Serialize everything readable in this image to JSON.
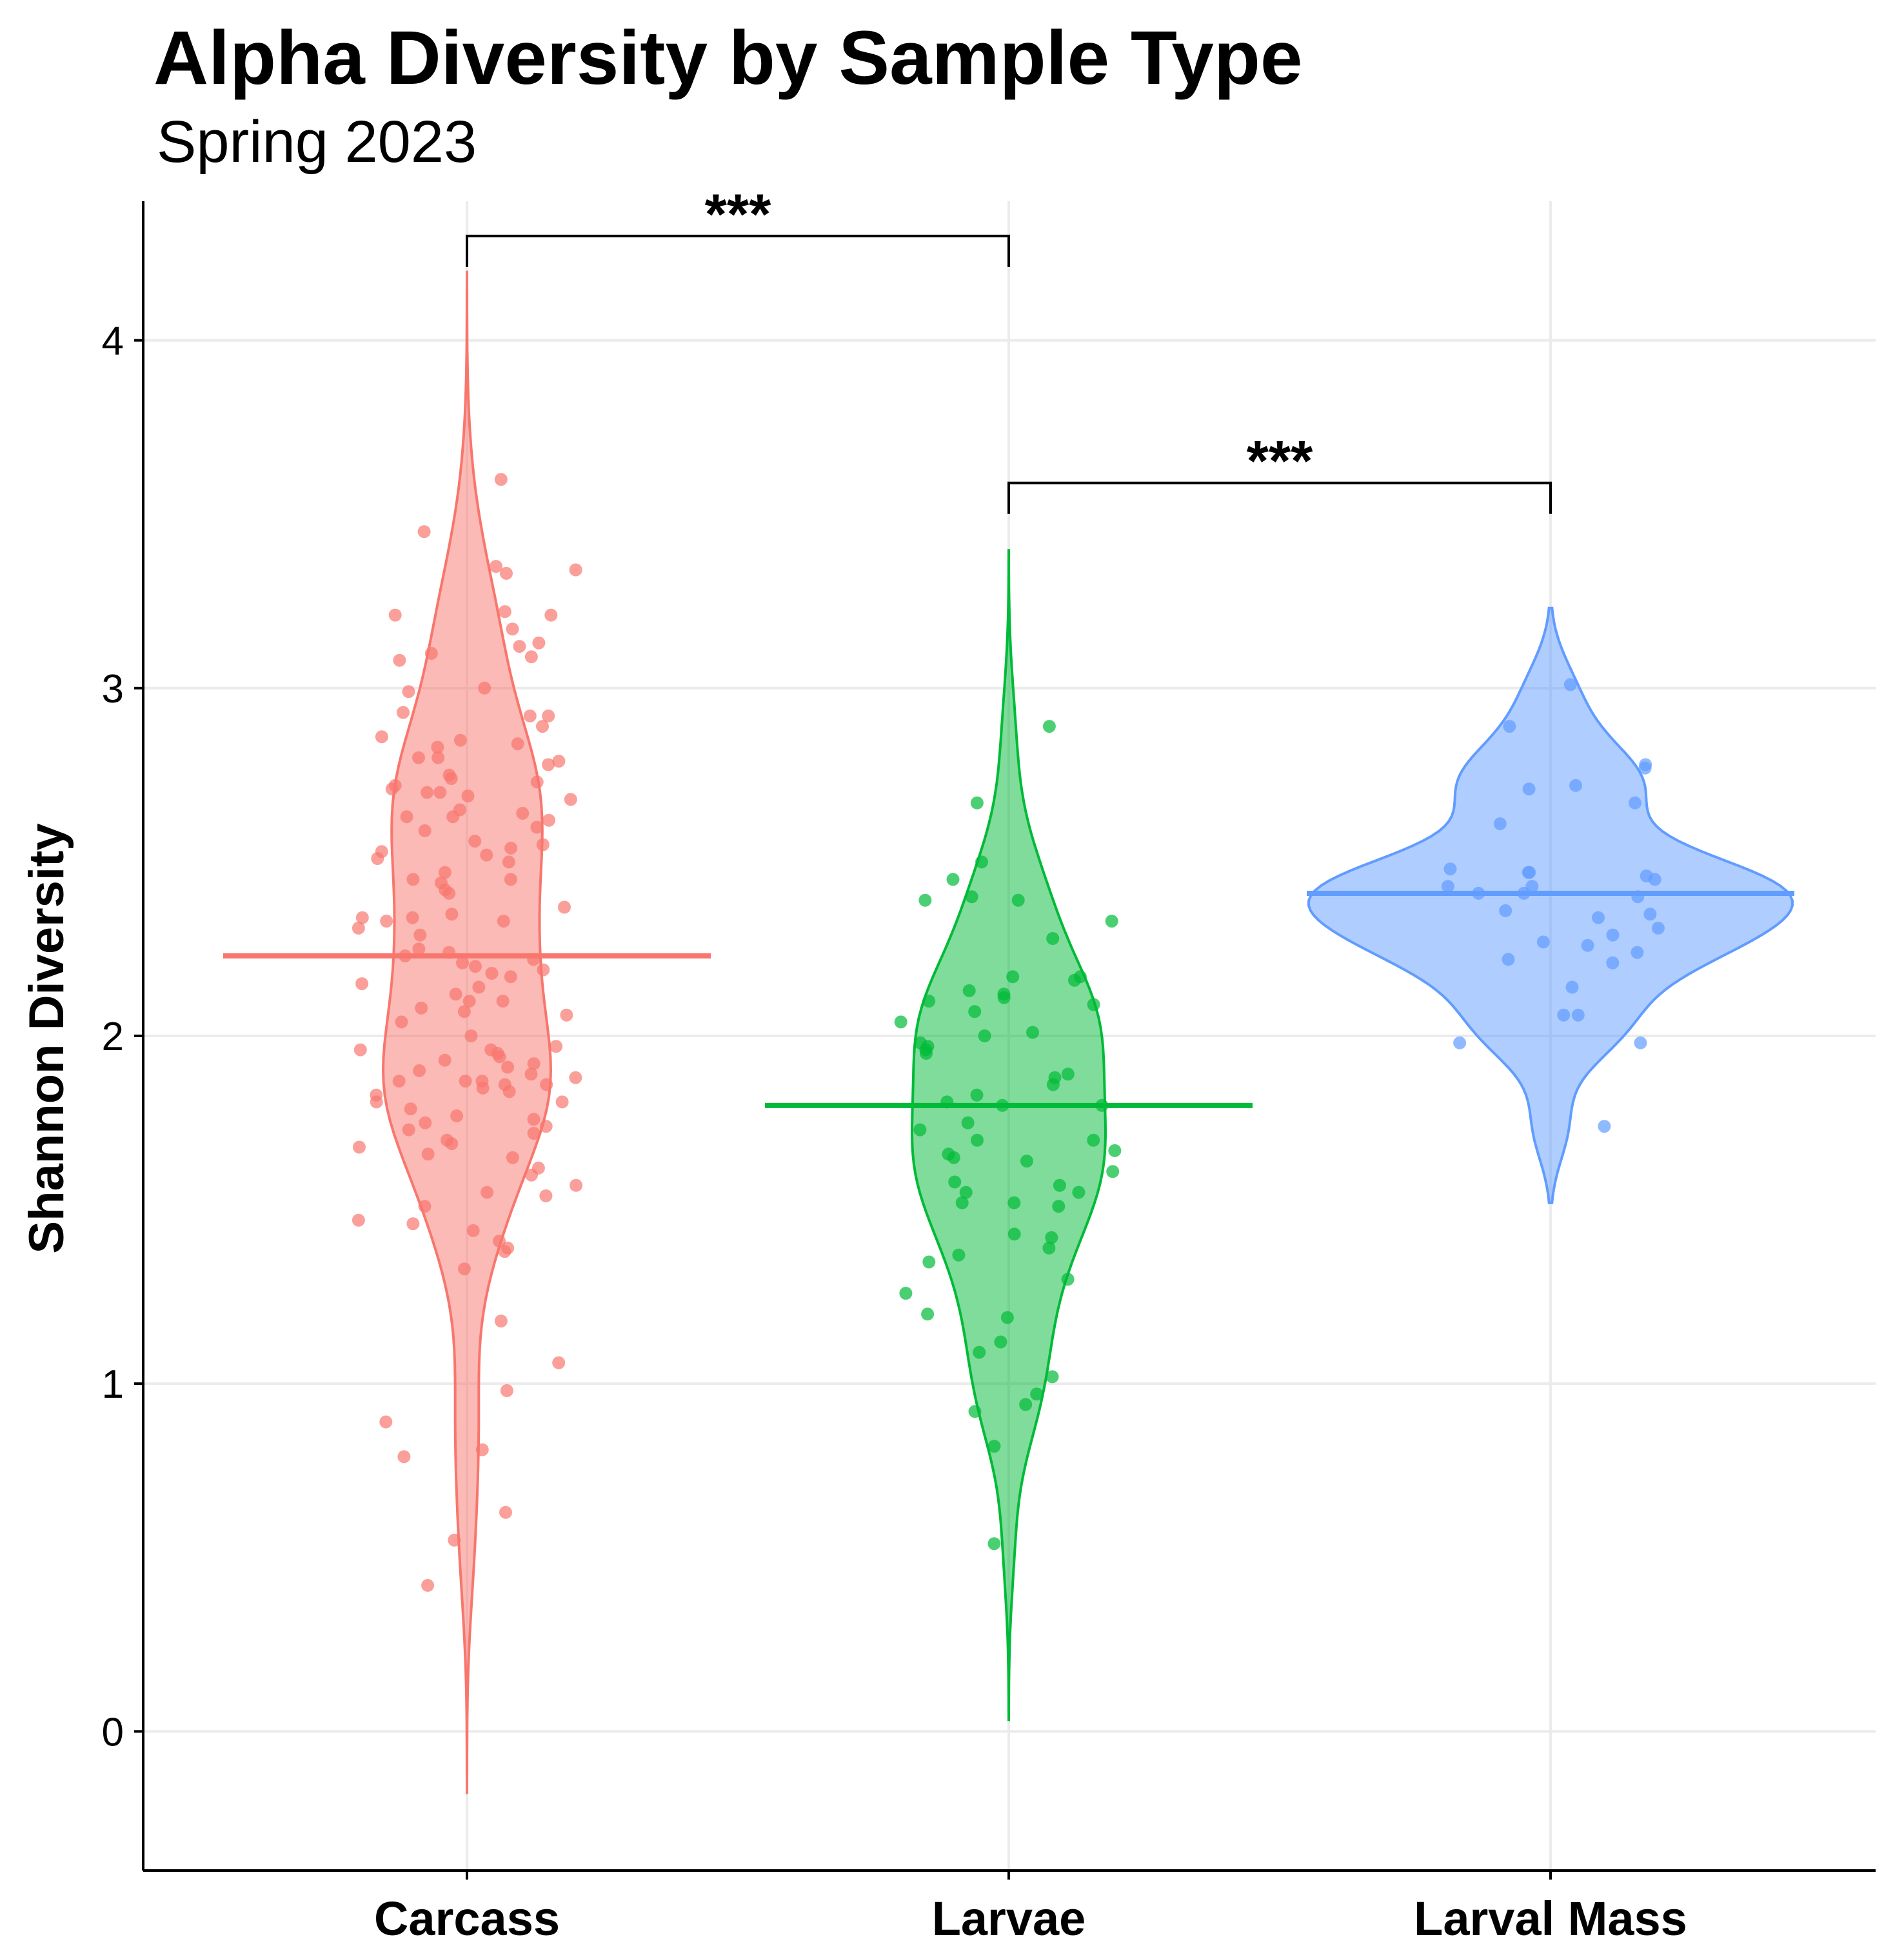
{
  "chart_data": {
    "type": "violin",
    "title": "Alpha Diversity by Sample Type",
    "subtitle": "Spring 2023",
    "xlabel": "",
    "ylabel": "Shannon Diversity",
    "ylim": [
      -0.4,
      4.4
    ],
    "yticks": [
      0,
      1,
      2,
      3,
      4
    ],
    "categories": [
      "Carcass",
      "Larvae",
      "Larval Mass"
    ],
    "grid": true,
    "legend": "none",
    "colors": {
      "Carcass": "#F8766D",
      "Larvae": "#00BA38",
      "Larval Mass": "#619CFF"
    },
    "series": [
      {
        "category": "Carcass",
        "mean": 2.23,
        "violin_range": [
          -0.18,
          4.2
        ],
        "points": [
          3.6,
          3.45,
          3.35,
          3.34,
          3.33,
          3.22,
          3.21,
          3.21,
          3.17,
          3.13,
          3.12,
          3.1,
          3.09,
          3.08,
          3.0,
          2.99,
          2.93,
          2.92,
          2.92,
          2.89,
          2.86,
          2.85,
          2.84,
          2.83,
          2.8,
          2.8,
          2.79,
          2.78,
          2.75,
          2.74,
          2.73,
          2.72,
          2.71,
          2.7,
          2.7,
          2.69,
          2.68,
          2.65,
          2.64,
          2.63,
          2.63,
          2.62,
          2.6,
          2.59,
          2.56,
          2.55,
          2.54,
          2.53,
          2.52,
          2.51,
          2.5,
          2.47,
          2.45,
          2.45,
          2.44,
          2.42,
          2.41,
          2.37,
          2.35,
          2.34,
          2.34,
          2.33,
          2.33,
          2.31,
          2.29,
          2.25,
          2.24,
          2.23,
          2.22,
          2.21,
          2.2,
          2.19,
          2.18,
          2.17,
          2.15,
          2.14,
          2.12,
          2.1,
          2.1,
          2.08,
          2.07,
          2.06,
          2.04,
          2.0,
          1.97,
          1.96,
          1.96,
          1.95,
          1.94,
          1.93,
          1.92,
          1.91,
          1.9,
          1.89,
          1.88,
          1.87,
          1.87,
          1.87,
          1.86,
          1.86,
          1.85,
          1.84,
          1.83,
          1.81,
          1.81,
          1.79,
          1.77,
          1.76,
          1.75,
          1.74,
          1.73,
          1.72,
          1.7,
          1.69,
          1.68,
          1.66,
          1.65,
          1.62,
          1.6,
          1.57,
          1.55,
          1.54,
          1.51,
          1.47,
          1.46,
          1.44,
          1.41,
          1.39,
          1.38,
          1.33,
          1.18,
          1.06,
          0.98,
          0.89,
          0.81,
          0.79,
          0.63,
          0.55,
          0.42
        ]
      },
      {
        "category": "Larvae",
        "mean": 1.8,
        "violin_range": [
          0.03,
          3.4
        ],
        "points": [
          2.89,
          2.67,
          2.5,
          2.45,
          2.4,
          2.39,
          2.39,
          2.33,
          2.28,
          2.17,
          2.17,
          2.16,
          2.13,
          2.12,
          2.11,
          2.1,
          2.09,
          2.07,
          2.04,
          2.01,
          2.0,
          1.98,
          1.97,
          1.96,
          1.95,
          1.89,
          1.88,
          1.86,
          1.83,
          1.81,
          1.8,
          1.8,
          1.75,
          1.73,
          1.7,
          1.7,
          1.67,
          1.66,
          1.65,
          1.64,
          1.61,
          1.58,
          1.57,
          1.55,
          1.55,
          1.52,
          1.52,
          1.51,
          1.43,
          1.42,
          1.39,
          1.37,
          1.35,
          1.3,
          1.26,
          1.2,
          1.19,
          1.12,
          1.09,
          1.02,
          0.97,
          0.94,
          0.92,
          0.82,
          0.54
        ]
      },
      {
        "category": "Larval Mass",
        "mean": 2.41,
        "violin_range": [
          1.52,
          3.23
        ],
        "points": [
          3.01,
          2.89,
          2.78,
          2.77,
          2.72,
          2.71,
          2.67,
          2.61,
          2.48,
          2.47,
          2.47,
          2.46,
          2.45,
          2.43,
          2.43,
          2.41,
          2.41,
          2.4,
          2.36,
          2.35,
          2.34,
          2.31,
          2.29,
          2.27,
          2.26,
          2.24,
          2.22,
          2.21,
          2.14,
          2.06,
          2.06,
          1.98,
          1.98,
          1.74
        ]
      }
    ],
    "significance": [
      {
        "from": "Carcass",
        "to": "Larvae",
        "label": "***",
        "y": 4.3
      },
      {
        "from": "Larvae",
        "to": "Larval Mass",
        "label": "***",
        "y": 3.59
      }
    ]
  }
}
